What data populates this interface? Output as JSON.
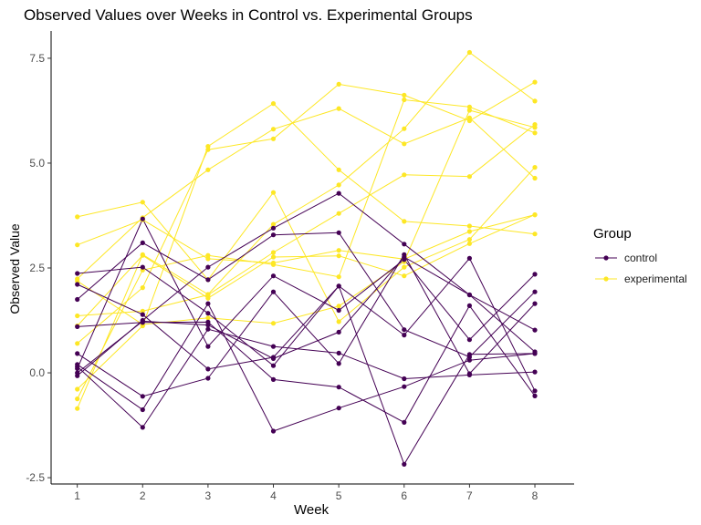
{
  "chart_data": {
    "type": "line",
    "title": "Observed Values over Weeks in Control vs. Experimental Groups",
    "xlabel": "Week",
    "ylabel": "Observed Value",
    "x": [
      1,
      2,
      3,
      4,
      5,
      6,
      7,
      8
    ],
    "xlim": [
      0.6,
      8.6
    ],
    "ylim": [
      -2.65,
      8.15
    ],
    "yticks": [
      -2.5,
      0.0,
      2.5,
      5.0,
      7.5
    ],
    "ytick_labels": [
      "-2.5",
      "0.0",
      "2.5",
      "5.0",
      "7.5"
    ],
    "xtick_labels": [
      "1",
      "2",
      "3",
      "4",
      "5",
      "6",
      "7",
      "8"
    ],
    "grid": false,
    "legend": {
      "title": "Group",
      "position": "right",
      "entries": [
        {
          "label": "control",
          "color": "#440154"
        },
        {
          "label": "experimental",
          "color": "#fde725"
        }
      ]
    },
    "groups": [
      {
        "name": "control",
        "color": "#440154",
        "series": [
          [
            2.37,
            2.52,
            1.42,
            0.17,
            2.07,
            0.9,
            2.73,
            -0.43
          ],
          [
            1.75,
            3.1,
            2.22,
            3.29,
            3.34,
            1.03,
            0.38,
            1.93
          ],
          [
            0.1,
            3.67,
            0.63,
            2.31,
            1.49,
            2.7,
            0.79,
            2.35
          ],
          [
            0.46,
            -0.56,
            -0.13,
            1.93,
            0.22,
            2.82,
            -0.02,
            1.65
          ],
          [
            -0.07,
            1.25,
            2.52,
            3.45,
            4.28,
            3.07,
            1.86,
            0.5
          ],
          [
            0.15,
            -1.3,
            1.04,
            0.63,
            0.47,
            -0.14,
            -0.05,
            0.02
          ],
          [
            0.0,
            1.23,
            1.14,
            0.34,
            0.97,
            2.76,
            1.86,
            1.02
          ],
          [
            2.11,
            1.39,
            0.09,
            0.37,
            2.07,
            -2.18,
            0.44,
            0.46
          ],
          [
            1.1,
            1.2,
            1.21,
            -0.16,
            -0.34,
            -1.18,
            1.6,
            -0.55
          ],
          [
            0.2,
            -0.88,
            1.65,
            -1.39,
            -0.84,
            -0.33,
            0.3,
            0.46
          ]
        ]
      },
      {
        "name": "experimental",
        "color": "#fde725",
        "series": [
          [
            3.05,
            3.65,
            2.72,
            2.62,
            2.92,
            2.71,
            3.37,
            3.77
          ],
          [
            3.72,
            4.07,
            2.22,
            4.3,
            1.22,
            2.52,
            3.18,
            4.9
          ],
          [
            2.24,
            3.7,
            4.84,
            5.81,
            6.3,
            5.46,
            6.08,
            4.64
          ],
          [
            1.12,
            2.8,
            1.78,
            2.76,
            2.79,
            2.31,
            3.08,
            3.77
          ],
          [
            -0.62,
            2.45,
            2.8,
            2.58,
            2.29,
            6.51,
            6.34,
            5.72
          ],
          [
            1.36,
            1.47,
            1.86,
            2.87,
            3.8,
            4.72,
            4.68,
            5.92
          ],
          [
            0.7,
            2.03,
            5.32,
            5.58,
            6.88,
            6.62,
            6.01,
            6.93
          ],
          [
            2.19,
            1.15,
            1.31,
            1.18,
            1.59,
            2.65,
            6.26,
            5.85
          ],
          [
            -0.85,
            2.82,
            1.87,
            3.54,
            4.48,
            5.82,
            7.64,
            6.48
          ],
          [
            -0.39,
            1.12,
            5.4,
            6.42,
            4.84,
            3.61,
            3.5,
            3.31
          ]
        ]
      }
    ]
  }
}
